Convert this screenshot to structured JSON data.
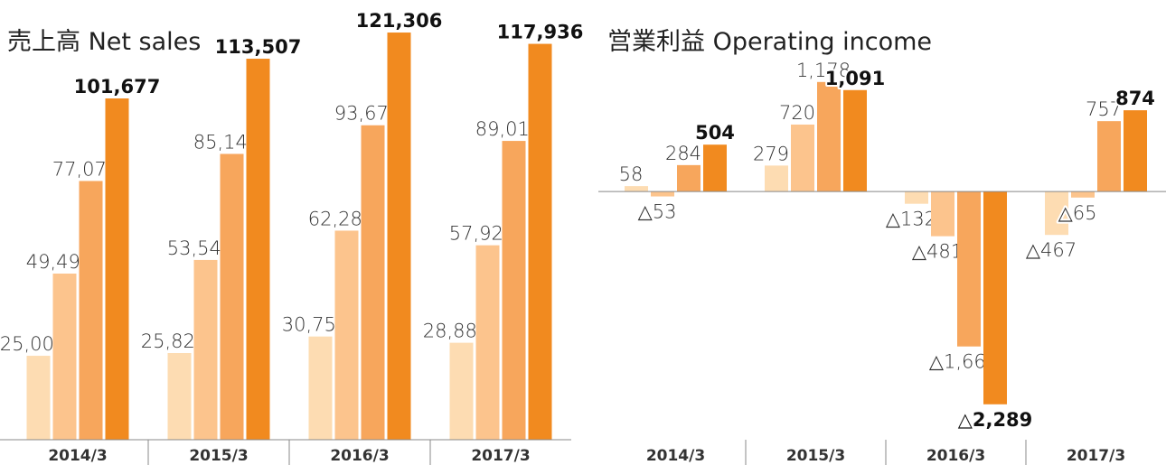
{
  "chart_data": [
    {
      "type": "bar",
      "title": "売上高 Net sales",
      "categories": [
        "2014/3",
        "2015/3",
        "2016/3",
        "2017/3"
      ],
      "ylim": [
        0,
        131000
      ],
      "series": [
        {
          "color": "#fddcb2",
          "values": [
            25005,
            25824,
            30752,
            28886
          ],
          "value_labels": [
            "25,005",
            "25,824",
            "30,752",
            "28,886"
          ]
        },
        {
          "color": "#fcc48d",
          "values": [
            49493,
            53548,
            62284,
            57927
          ],
          "value_labels": [
            "49,493",
            "53,548",
            "62,284",
            "57,927"
          ]
        },
        {
          "color": "#f7a65c",
          "values": [
            77076,
            85149,
            93678,
            89017
          ],
          "value_labels": [
            "77,076",
            "85,149",
            "93,678",
            "89,017"
          ]
        },
        {
          "color": "#f18a1f",
          "values": [
            101677,
            113507,
            121306,
            117936
          ],
          "value_labels": [
            "101,677",
            "113,507",
            "121,306",
            "117,936"
          ]
        }
      ]
    },
    {
      "type": "bar",
      "title": "営業利益 Operating income",
      "categories": [
        "2014/3",
        "2015/3",
        "2016/3",
        "2017/3"
      ],
      "ylim": [
        -2670,
        2060
      ],
      "series": [
        {
          "color": "#fddcb2",
          "values": [
            58,
            279,
            -132,
            -467
          ],
          "value_labels": [
            "58",
            "279",
            "△132",
            "△467"
          ]
        },
        {
          "color": "#fcc48d",
          "values": [
            -53,
            720,
            -481,
            -65
          ],
          "value_labels": [
            "△53",
            "720",
            "△481",
            "△65"
          ]
        },
        {
          "color": "#f7a65c",
          "values": [
            284,
            1178,
            -1667,
            757
          ],
          "value_labels": [
            "284",
            "1,178",
            "△1,667",
            "757"
          ]
        },
        {
          "color": "#f18a1f",
          "values": [
            504,
            1091,
            -2289,
            874
          ],
          "value_labels": [
            "504",
            "1,091",
            "△2,289",
            "874"
          ]
        }
      ]
    }
  ]
}
